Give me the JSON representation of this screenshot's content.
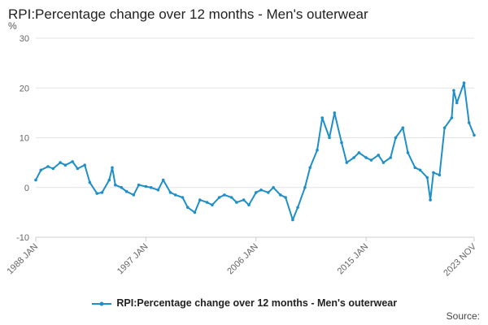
{
  "chart_data": {
    "type": "line",
    "title": "RPI:Percentage change over 12 months - Men's outerwear",
    "ylabel": "%",
    "xlabel": "",
    "ylim": [
      -10,
      30
    ],
    "yticks": [
      "-10",
      "0",
      "10",
      "20",
      "30"
    ],
    "xticks": [
      "1988 JAN",
      "1997 JAN",
      "2006 JAN",
      "2015 JAN",
      "2023 NOV"
    ],
    "grid": true,
    "legend_position": "bottom",
    "series": [
      {
        "name": "RPI:Percentage change over 12 months - Men's outerwear",
        "color": "#1f8fc8",
        "marker": "circle",
        "points": [
          [
            "1988 JAN",
            1.5
          ],
          [
            "1988 JUN",
            3.5
          ],
          [
            "1989 JAN",
            4.2
          ],
          [
            "1989 JUN",
            3.8
          ],
          [
            "1990 JAN",
            5.0
          ],
          [
            "1990 JUN",
            4.5
          ],
          [
            "1991 JAN",
            5.2
          ],
          [
            "1991 JUN",
            3.8
          ],
          [
            "1992 JAN",
            4.5
          ],
          [
            "1992 JUN",
            1.0
          ],
          [
            "1993 JAN",
            -1.2
          ],
          [
            "1993 JUN",
            -1.0
          ],
          [
            "1994 JAN",
            1.5
          ],
          [
            "1994 APR",
            4.0
          ],
          [
            "1994 JUL",
            0.5
          ],
          [
            "1995 JAN",
            0.0
          ],
          [
            "1995 JUN",
            -0.8
          ],
          [
            "1996 JAN",
            -1.5
          ],
          [
            "1996 JUN",
            0.5
          ],
          [
            "1997 JAN",
            0.2
          ],
          [
            "1997 JUN",
            0.0
          ],
          [
            "1998 JAN",
            -0.5
          ],
          [
            "1998 JUN",
            1.5
          ],
          [
            "1999 JAN",
            -1.0
          ],
          [
            "1999 JUN",
            -1.5
          ],
          [
            "2000 JAN",
            -2.0
          ],
          [
            "2000 JUN",
            -4.0
          ],
          [
            "2001 JAN",
            -5.0
          ],
          [
            "2001 JUN",
            -2.5
          ],
          [
            "2002 JAN",
            -3.0
          ],
          [
            "2002 JUN",
            -3.5
          ],
          [
            "2003 JAN",
            -2.0
          ],
          [
            "2003 JUN",
            -1.5
          ],
          [
            "2004 JAN",
            -2.0
          ],
          [
            "2004 JUN",
            -3.0
          ],
          [
            "2005 JAN",
            -2.5
          ],
          [
            "2005 JUN",
            -3.5
          ],
          [
            "2006 JAN",
            -1.0
          ],
          [
            "2006 JUN",
            -0.5
          ],
          [
            "2007 JAN",
            -1.0
          ],
          [
            "2007 JUN",
            0.0
          ],
          [
            "2008 JAN",
            -1.5
          ],
          [
            "2008 JUN",
            -2.0
          ],
          [
            "2009 JAN",
            -6.5
          ],
          [
            "2009 JUN",
            -4.0
          ],
          [
            "2010 JAN",
            0.0
          ],
          [
            "2010 JUN",
            4.0
          ],
          [
            "2011 JAN",
            7.5
          ],
          [
            "2011 JUN",
            14.0
          ],
          [
            "2012 JAN",
            10.0
          ],
          [
            "2012 JUN",
            15.0
          ],
          [
            "2013 JAN",
            9.0
          ],
          [
            "2013 JUN",
            5.0
          ],
          [
            "2014 JAN",
            6.0
          ],
          [
            "2014 JUN",
            7.0
          ],
          [
            "2015 JAN",
            6.0
          ],
          [
            "2015 JUN",
            5.5
          ],
          [
            "2016 JAN",
            6.5
          ],
          [
            "2016 JUN",
            5.0
          ],
          [
            "2017 JAN",
            6.0
          ],
          [
            "2017 JUN",
            10.0
          ],
          [
            "2018 JAN",
            12.0
          ],
          [
            "2018 JUN",
            7.0
          ],
          [
            "2019 JAN",
            4.0
          ],
          [
            "2019 JUN",
            3.5
          ],
          [
            "2020 JAN",
            2.0
          ],
          [
            "2020 APR",
            -2.5
          ],
          [
            "2020 JUL",
            3.0
          ],
          [
            "2021 JAN",
            2.5
          ],
          [
            "2021 JUN",
            12.0
          ],
          [
            "2022 JAN",
            14.0
          ],
          [
            "2022 MAR",
            19.5
          ],
          [
            "2022 JUN",
            17.0
          ],
          [
            "2023 JAN",
            21.0
          ],
          [
            "2023 JUN",
            13.0
          ],
          [
            "2023 NOV",
            10.5
          ]
        ]
      }
    ]
  },
  "legend": {
    "label": "RPI:Percentage change over 12 months - Men's outerwear"
  },
  "source": "Source:"
}
